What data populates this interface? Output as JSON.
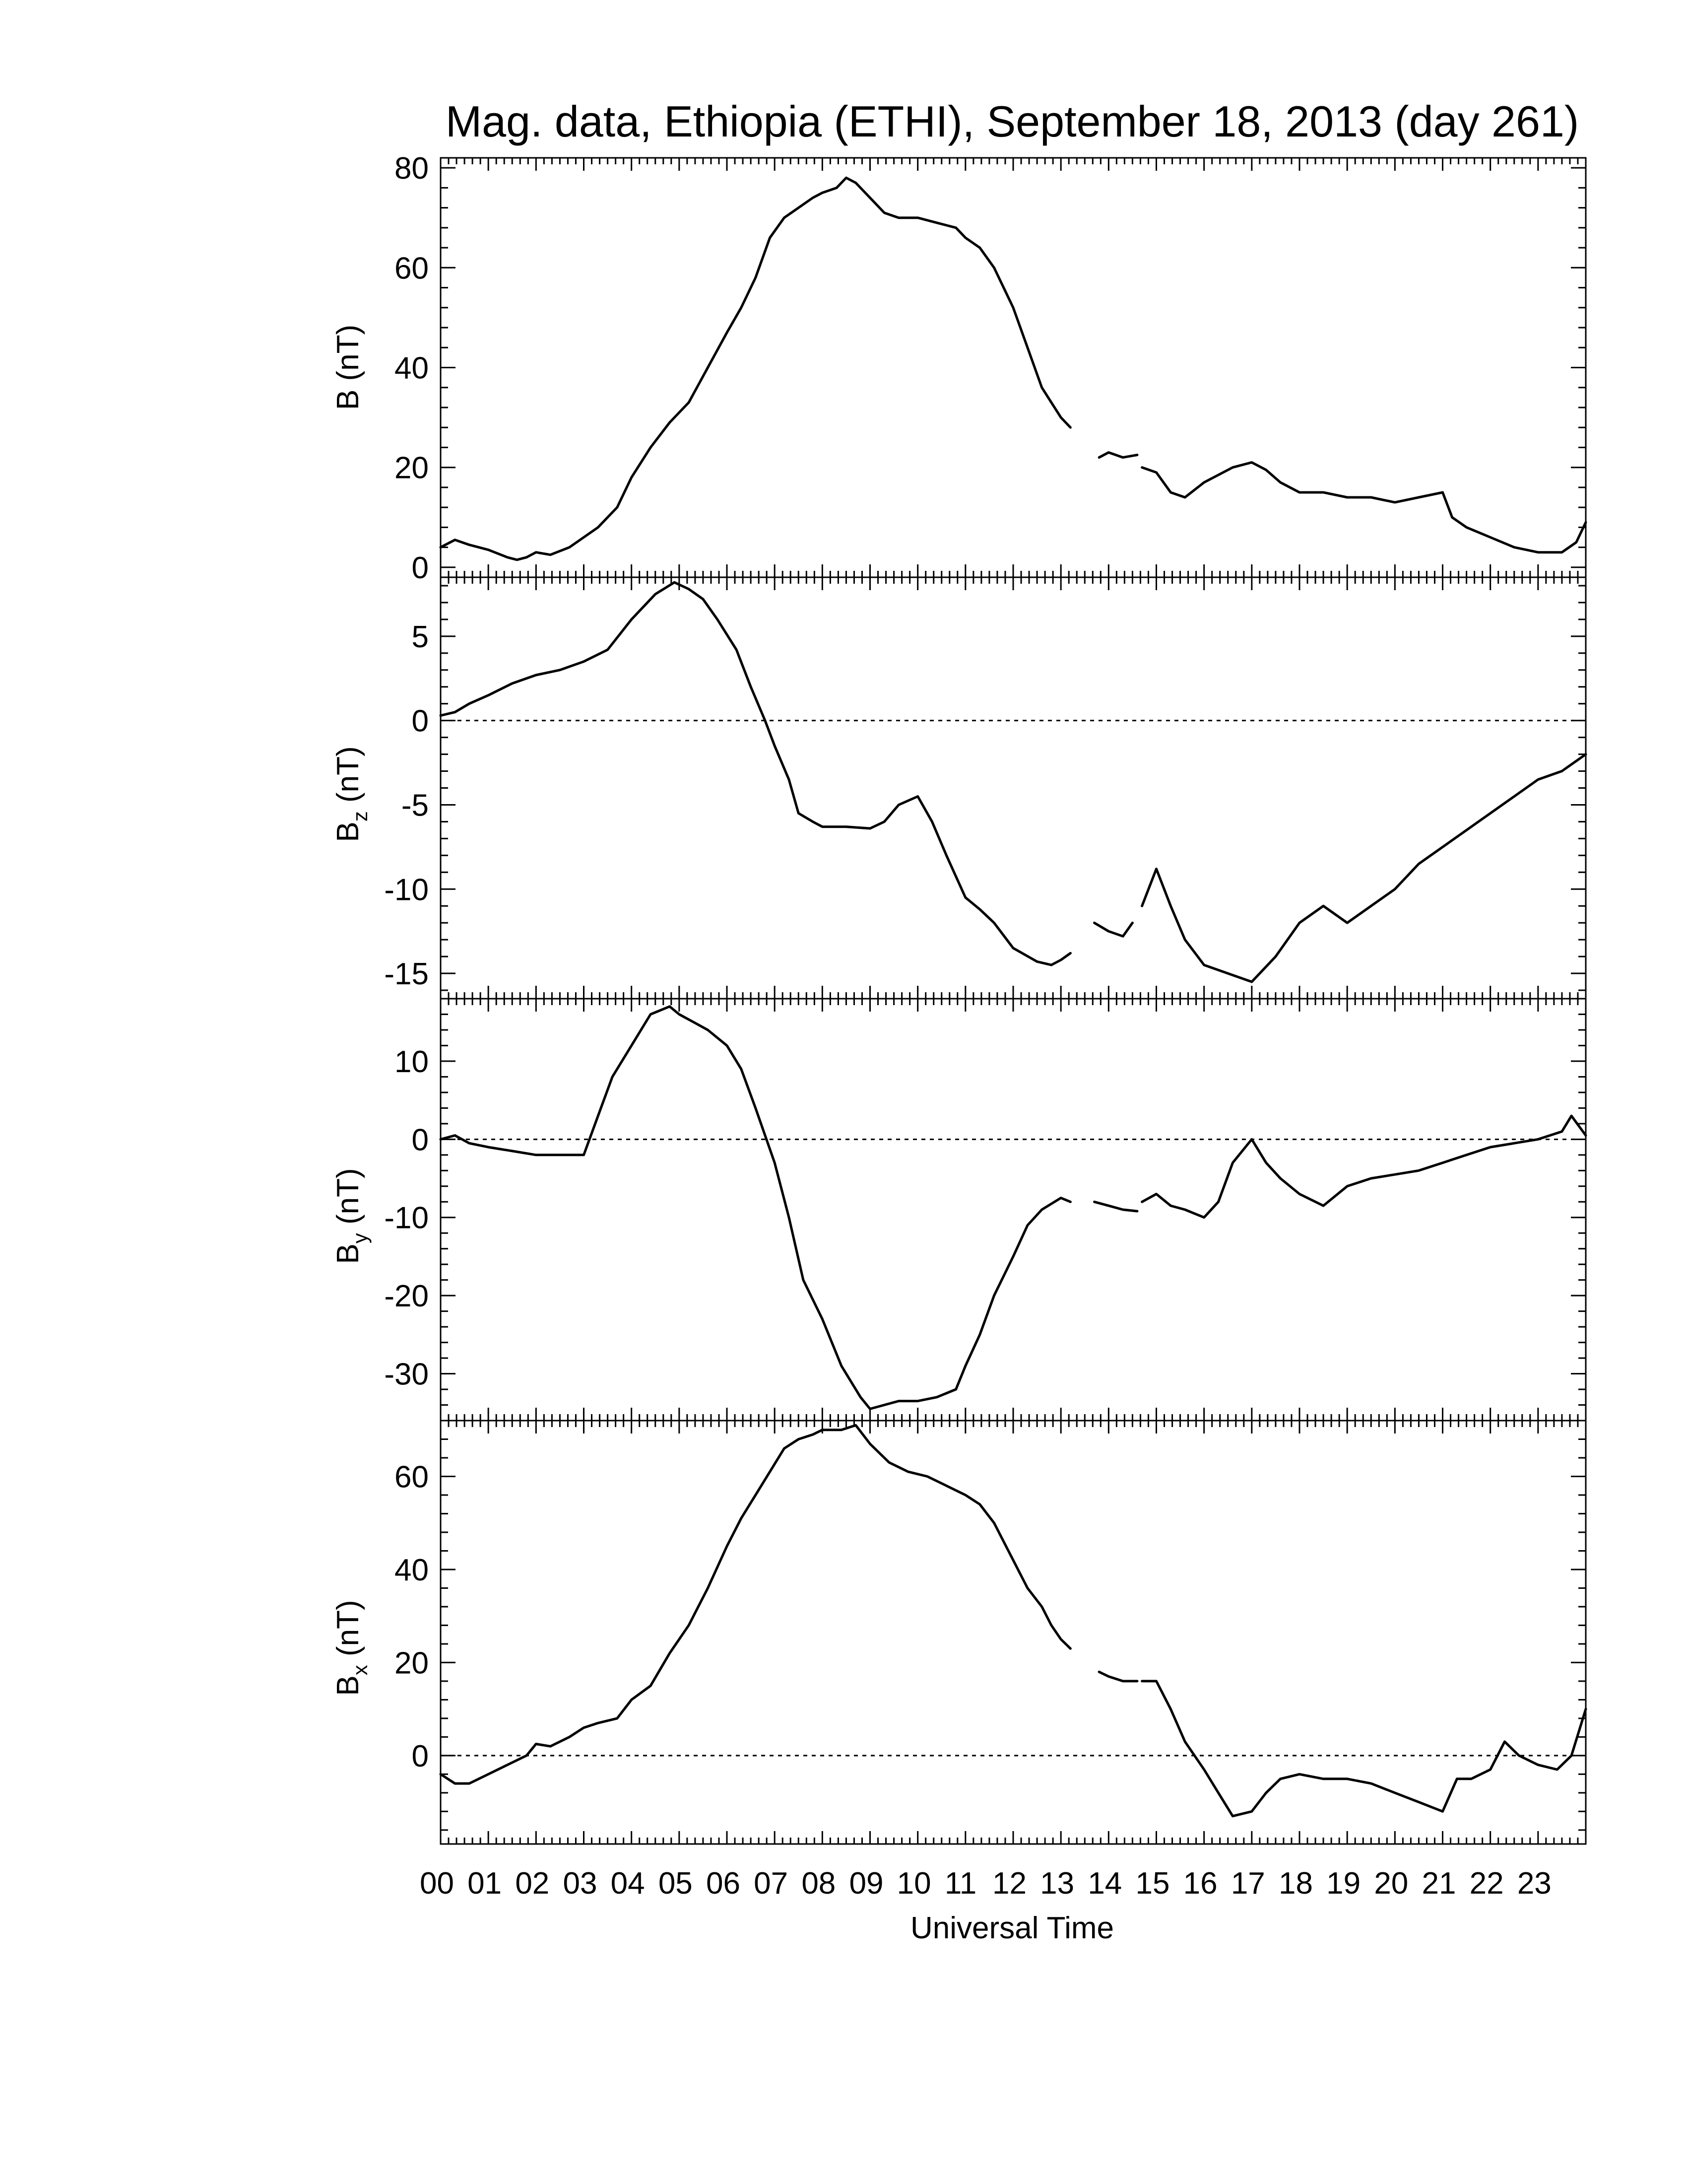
{
  "chart_data": {
    "title": "Mag. data, Ethiopia (ETHI), September 18, 2013 (day 261)",
    "xlabel": "Universal Time",
    "x_range_hours": [
      0,
      24
    ],
    "x_tick_labels": [
      "00",
      "01",
      "02",
      "03",
      "04",
      "05",
      "06",
      "07",
      "08",
      "09",
      "10",
      "11",
      "12",
      "13",
      "14",
      "15",
      "16",
      "17",
      "18",
      "19",
      "20",
      "21",
      "22",
      "23"
    ],
    "x_tick_values": [
      0,
      1,
      2,
      3,
      4,
      5,
      6,
      7,
      8,
      9,
      10,
      11,
      12,
      13,
      14,
      15,
      16,
      17,
      18,
      19,
      20,
      21,
      22,
      23
    ],
    "panels": [
      {
        "id": "B",
        "type": "line",
        "ylabel_main": "B",
        "ylabel_sub": "",
        "ylabel_unit": " (nT)",
        "ylim": [
          -2,
          82
        ],
        "yticks": [
          0,
          20,
          40,
          60,
          80
        ],
        "zero_line": false,
        "segments": [
          {
            "x": [
              0,
              0.3,
              0.6,
              1.0,
              1.4,
              1.6,
              1.8,
              2.0,
              2.3,
              2.7,
              3.0,
              3.3,
              3.7,
              4.0,
              4.4,
              4.8,
              5.2,
              5.6,
              6.0,
              6.3,
              6.6,
              6.9,
              7.2,
              7.5,
              7.8,
              8.0,
              8.3,
              8.5,
              8.7,
              9.0,
              9.3,
              9.6,
              10.0,
              10.4,
              10.8,
              11.0,
              11.3,
              11.6,
              12.0,
              12.3,
              12.6,
              12.8,
              13.0,
              13.2
            ],
            "y": [
              4,
              5.5,
              4.5,
              3.5,
              2,
              1.5,
              2,
              3,
              2.5,
              4,
              6,
              8,
              12,
              18,
              24,
              29,
              33,
              40,
              47,
              52,
              58,
              66,
              70,
              72,
              74,
              75,
              76,
              78,
              77,
              74,
              71,
              70,
              70,
              69,
              68,
              66,
              64,
              60,
              52,
              44,
              36,
              33,
              30,
              28
            ]
          },
          {
            "x": [
              13.8,
              14.0,
              14.3,
              14.6
            ],
            "y": [
              22,
              23,
              22,
              22.5
            ]
          },
          {
            "x": [
              14.7,
              15.0,
              15.3,
              15.6,
              16.0,
              16.3,
              16.6,
              17.0,
              17.3,
              17.6,
              18.0,
              18.5,
              19.0,
              19.5,
              20.0,
              20.5,
              21.0,
              21.2,
              21.5,
              22.0,
              22.5,
              23.0,
              23.5,
              23.8,
              24.0
            ],
            "y": [
              20,
              19,
              15,
              14,
              17,
              18.5,
              20,
              21,
              19.5,
              17,
              15,
              15,
              14,
              14,
              13,
              14,
              15,
              10,
              8,
              6,
              4,
              3,
              3,
              5,
              9
            ]
          }
        ]
      },
      {
        "id": "Bz",
        "type": "line",
        "ylabel_main": "B",
        "ylabel_sub": "z",
        "ylabel_unit": " (nT)",
        "ylim": [
          -16.5,
          8.5
        ],
        "yticks": [
          -15,
          -10,
          -5,
          0,
          5
        ],
        "zero_line": true,
        "segments": [
          {
            "x": [
              0,
              0.3,
              0.6,
              1.0,
              1.5,
              2.0,
              2.5,
              3.0,
              3.5,
              4.0,
              4.5,
              4.9,
              5.2,
              5.5,
              5.8,
              6.2,
              6.5,
              6.8,
              7.0,
              7.3,
              7.5,
              7.8,
              8.0,
              8.5,
              9.0,
              9.3,
              9.6,
              10.0,
              10.3,
              10.6,
              11.0,
              11.3,
              11.6,
              12.0,
              12.5,
              12.8,
              13.0,
              13.2
            ],
            "y": [
              0.3,
              0.5,
              1,
              1.5,
              2.2,
              2.7,
              3,
              3.5,
              4.2,
              6,
              7.5,
              8.2,
              7.8,
              7.2,
              6,
              4.2,
              2,
              0,
              -1.5,
              -3.5,
              -5.5,
              -6,
              -6.3,
              -6.3,
              -6.4,
              -6,
              -5,
              -4.5,
              -6,
              -8,
              -10.5,
              -11.2,
              -12,
              -13.5,
              -14.3,
              -14.5,
              -14.2,
              -13.8
            ]
          },
          {
            "x": [
              13.7,
              14.0,
              14.3,
              14.5
            ],
            "y": [
              -12,
              -12.5,
              -12.8,
              -12
            ]
          },
          {
            "x": [
              14.7,
              15.0,
              15.3,
              15.6,
              16.0,
              16.5,
              17.0,
              17.5,
              18.0,
              18.5,
              19.0,
              19.5,
              20.0,
              20.5,
              21.0,
              21.5,
              22.0,
              22.5,
              23.0,
              23.5,
              24.0
            ],
            "y": [
              -11,
              -8.8,
              -11,
              -13,
              -14.5,
              -15,
              -15.5,
              -14,
              -12,
              -11,
              -12,
              -11,
              -10,
              -8.5,
              -7.5,
              -6.5,
              -5.5,
              -4.5,
              -3.5,
              -3,
              -2
            ]
          }
        ]
      },
      {
        "id": "By",
        "type": "line",
        "ylabel_main": "B",
        "ylabel_sub": "y",
        "ylabel_unit": " (nT)",
        "ylim": [
          -36,
          18
        ],
        "yticks": [
          -30,
          -20,
          -10,
          0,
          10
        ],
        "zero_line": true,
        "segments": [
          {
            "x": [
              0,
              0.3,
              0.6,
              1.0,
              1.5,
              2.0,
              2.5,
              3.0,
              3.3,
              3.6,
              4.0,
              4.4,
              4.8,
              5.0,
              5.3,
              5.6,
              6.0,
              6.3,
              6.6,
              7.0,
              7.3,
              7.6,
              8.0,
              8.4,
              8.8,
              9.0,
              9.3,
              9.6,
              10.0,
              10.4,
              10.8,
              11.0,
              11.3,
              11.6,
              12.0,
              12.3,
              12.6,
              13.0,
              13.2
            ],
            "y": [
              0,
              0.5,
              -0.5,
              -1,
              -1.5,
              -2,
              -2,
              -2,
              3,
              8,
              12,
              16,
              17,
              16,
              15,
              14,
              12,
              9,
              4,
              -3,
              -10,
              -18,
              -23,
              -29,
              -33,
              -34.5,
              -34,
              -33.5,
              -33.5,
              -33,
              -32,
              -29,
              -25,
              -20,
              -15,
              -11,
              -9,
              -7.5,
              -8
            ]
          },
          {
            "x": [
              13.7,
              14.0,
              14.3,
              14.6
            ],
            "y": [
              -8,
              -8.5,
              -9,
              -9.2
            ]
          },
          {
            "x": [
              14.7,
              15.0,
              15.3,
              15.6,
              16.0,
              16.3,
              16.6,
              17.0,
              17.3,
              17.6,
              18.0,
              18.5,
              19.0,
              19.5,
              20.0,
              20.5,
              21.0,
              21.5,
              22.0,
              22.5,
              23.0,
              23.5,
              23.7,
              24.0
            ],
            "y": [
              -8,
              -7,
              -8.5,
              -9,
              -10,
              -8,
              -3,
              0,
              -3,
              -5,
              -7,
              -8.5,
              -6,
              -5,
              -4.5,
              -4,
              -3,
              -2,
              -1,
              -0.5,
              0,
              1,
              3,
              0.5
            ]
          }
        ]
      },
      {
        "id": "Bx",
        "type": "line",
        "ylabel_main": "B",
        "ylabel_sub": "x",
        "ylabel_unit": " (nT)",
        "ylim": [
          -19,
          72
        ],
        "yticks": [
          0,
          20,
          40,
          60
        ],
        "zero_line": true,
        "segments": [
          {
            "x": [
              0,
              0.3,
              0.6,
              1.0,
              1.4,
              1.8,
              2.0,
              2.3,
              2.7,
              3.0,
              3.3,
              3.7,
              4.0,
              4.4,
              4.8,
              5.2,
              5.6,
              6.0,
              6.3,
              6.6,
              6.9,
              7.2,
              7.5,
              7.8,
              8.0,
              8.4,
              8.7,
              9.0,
              9.4,
              9.8,
              10.2,
              10.6,
              11.0,
              11.3,
              11.6,
              12.0,
              12.3,
              12.6,
              12.8,
              13.0,
              13.2
            ],
            "y": [
              -4,
              -6,
              -6,
              -4,
              -2,
              0,
              2.5,
              2,
              4,
              6,
              7,
              8,
              12,
              15,
              22,
              28,
              36,
              45,
              51,
              56,
              61,
              66,
              68,
              69,
              70,
              70,
              71,
              67,
              63,
              61,
              60,
              58,
              56,
              54,
              50,
              42,
              36,
              32,
              28,
              25,
              23
            ]
          },
          {
            "x": [
              13.8,
              14.0,
              14.3,
              14.6
            ],
            "y": [
              18,
              17,
              16,
              16
            ]
          },
          {
            "x": [
              14.7,
              15.0,
              15.3,
              15.6,
              16.0,
              16.3,
              16.6,
              17.0,
              17.3,
              17.6,
              18.0,
              18.5,
              19.0,
              19.5,
              20.0,
              20.5,
              21.0,
              21.3,
              21.6,
              22.0,
              22.3,
              22.6,
              23.0,
              23.4,
              23.7,
              24.0
            ],
            "y": [
              16,
              16,
              10,
              3,
              -3,
              -8,
              -13,
              -12,
              -8,
              -5,
              -4,
              -5,
              -5,
              -6,
              -8,
              -10,
              -12,
              -5,
              -5,
              -3,
              3,
              0,
              -2,
              -3,
              0,
              10
            ]
          }
        ]
      }
    ]
  }
}
